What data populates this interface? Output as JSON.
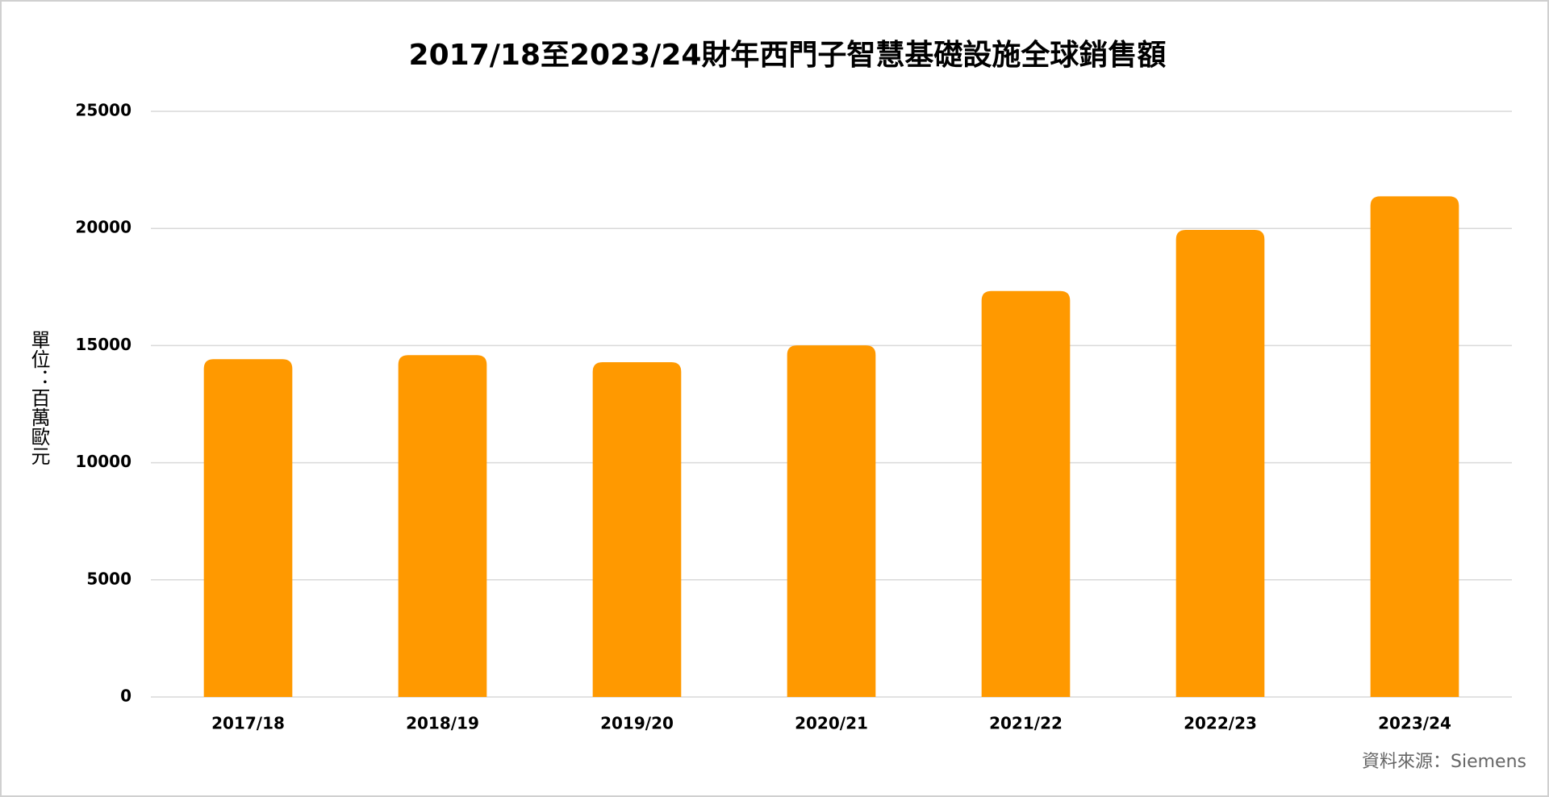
{
  "chart_data": {
    "type": "bar",
    "title": "2017/18至2023/24財年西門子智慧基礎設施全球銷售額",
    "y_label": "單位：百萬歐元",
    "source": "資料來源：Siemens",
    "categories": [
      "2017/18",
      "2018/19",
      "2019/20",
      "2020/21",
      "2021/22",
      "2022/23",
      "2023/24"
    ],
    "values": [
      14420,
      14590,
      14290,
      15010,
      17330,
      19940,
      21370
    ],
    "color": "#ff9900",
    "ylim": [
      0,
      25000
    ],
    "yticks": [
      0,
      5000,
      10000,
      15000,
      20000,
      25000
    ],
    "grid": true
  }
}
